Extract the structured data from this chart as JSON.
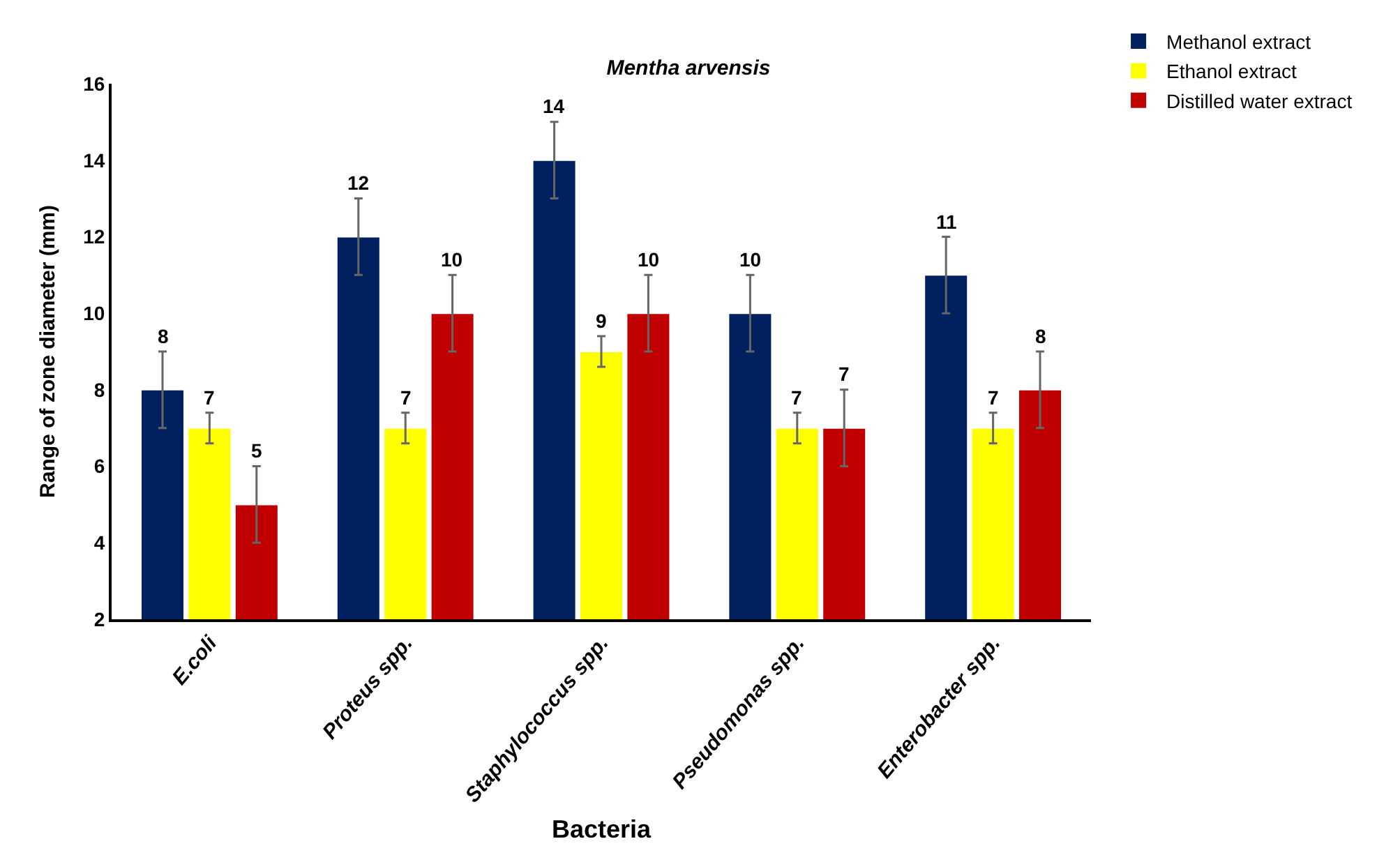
{
  "chart_data": {
    "type": "bar",
    "title": "Mentha arvensis",
    "xlabel": "Bacteria",
    "ylabel": "Range of zone diameter (mm)",
    "categories": [
      "E.coli",
      "Proteus spp.",
      "Staphylococcus spp.",
      "Pseudomonas spp.",
      "Enterobacter spp."
    ],
    "series": [
      {
        "name": "Methanol extract",
        "color": "#002060",
        "values": [
          8,
          12,
          14,
          10,
          11
        ],
        "errors": [
          1,
          1,
          1,
          1,
          1
        ]
      },
      {
        "name": "Ethanol extract",
        "color": "#ffff00",
        "values": [
          7,
          7,
          9,
          7,
          7
        ],
        "errors": [
          0.4,
          0.4,
          0.4,
          0.4,
          0.4
        ]
      },
      {
        "name": "Distilled water extract",
        "color": "#c00000",
        "values": [
          5,
          10,
          10,
          7,
          8
        ],
        "errors": [
          1,
          1,
          1,
          1,
          1
        ]
      }
    ],
    "ylim": [
      2,
      16
    ],
    "yticks": [
      2,
      4,
      6,
      8,
      10,
      12,
      14,
      16
    ],
    "grid": false,
    "legend": "top right",
    "data_labels": true
  }
}
